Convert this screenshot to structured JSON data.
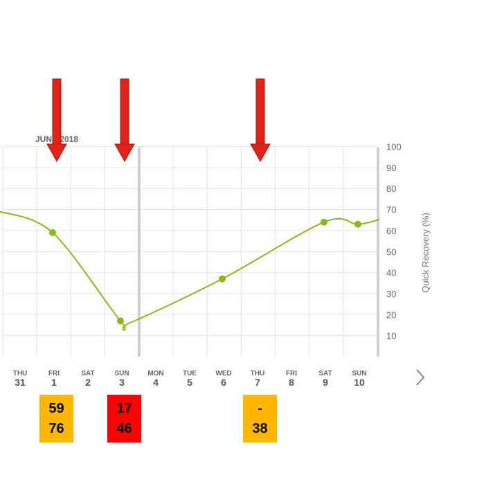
{
  "chart_data": {
    "type": "line",
    "month_label": "JUNE 2018",
    "ylabel": "Quick Recovery (%)",
    "ylim": [
      0,
      100
    ],
    "y_ticks": [
      10,
      20,
      30,
      40,
      50,
      60,
      70,
      80,
      90,
      100
    ],
    "grid": true,
    "days": [
      {
        "dow": "THU",
        "date": "31"
      },
      {
        "dow": "FRI",
        "date": "1"
      },
      {
        "dow": "SAT",
        "date": "2"
      },
      {
        "dow": "SUN",
        "date": "3"
      },
      {
        "dow": "MON",
        "date": "4"
      },
      {
        "dow": "TUE",
        "date": "5"
      },
      {
        "dow": "WED",
        "date": "6"
      },
      {
        "dow": "THU",
        "date": "7"
      },
      {
        "dow": "FRI",
        "date": "8"
      },
      {
        "dow": "SAT",
        "date": "9"
      },
      {
        "dow": "SUN",
        "date": "10"
      }
    ],
    "series": [
      {
        "color": "#8ab81a",
        "points": [
          {
            "date": "1",
            "value": 59
          },
          {
            "date": "3",
            "value": 17
          },
          {
            "date": "6",
            "value": 37
          },
          {
            "date": "9",
            "value": 64
          },
          {
            "date": "10",
            "value": 63
          }
        ]
      }
    ],
    "annotations": {
      "arrow_color": "#e2231a",
      "arrows_at": [
        "1",
        "3",
        "7"
      ],
      "boxes": [
        {
          "date": "1",
          "color": "#ffb700",
          "lines": [
            "59",
            "76"
          ]
        },
        {
          "date": "3",
          "color": "#ff0000",
          "lines": [
            "17",
            "46"
          ]
        },
        {
          "date": "7",
          "color": "#ffb700",
          "lines": [
            "-",
            "38"
          ]
        }
      ]
    }
  },
  "nav": {
    "next_icon": "chevron-right-icon"
  }
}
